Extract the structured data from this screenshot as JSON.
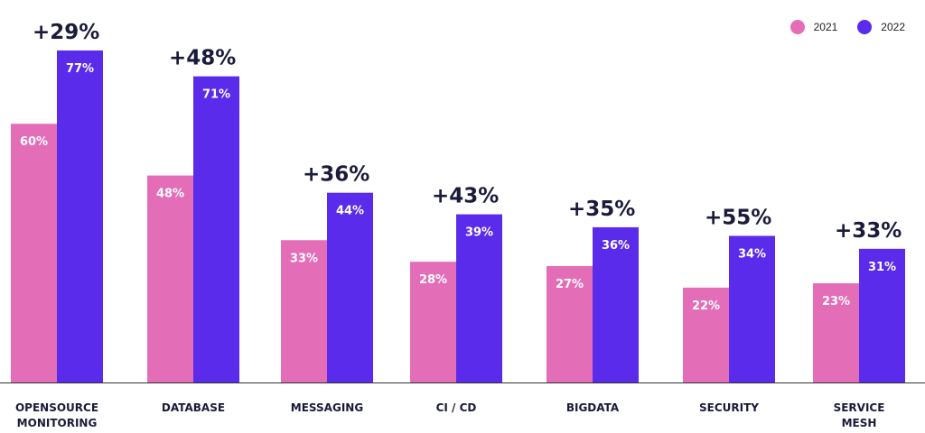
{
  "colors": {
    "s2021": "#e46db8",
    "s2022": "#5a2bea",
    "growth_text": "#1a1a3a",
    "axis": "#333333",
    "label": "#1a1a3a"
  },
  "legend": {
    "label_2021": "2021",
    "label_2022": "2022"
  },
  "chart_data": {
    "type": "bar",
    "categories": [
      "OPENSOURCE MONITORING",
      "DATABASE",
      "MESSAGING",
      "CI / CD",
      "BIGDATA",
      "SECURITY",
      "SERVICE MESH"
    ],
    "category_lines": [
      [
        "OPENSOURCE",
        "MONITORING"
      ],
      [
        "DATABASE"
      ],
      [
        "MESSAGING"
      ],
      [
        "CI / CD"
      ],
      [
        "BIGDATA"
      ],
      [
        "SECURITY"
      ],
      [
        "SERVICE",
        "MESH"
      ]
    ],
    "series": [
      {
        "name": "2021",
        "values": [
          60,
          48,
          33,
          28,
          27,
          22,
          23
        ],
        "labels": [
          "60%",
          "48%",
          "33%",
          "28%",
          "27%",
          "22%",
          "23%"
        ]
      },
      {
        "name": "2022",
        "values": [
          77,
          71,
          44,
          39,
          36,
          34,
          31
        ],
        "labels": [
          "77%",
          "71%",
          "44%",
          "39%",
          "36%",
          "34%",
          "31%"
        ]
      }
    ],
    "growth_labels": [
      "+29%",
      "+48%",
      "+36%",
      "+43%",
      "+35%",
      "+55%",
      "+33%"
    ],
    "ylim": [
      0,
      100
    ],
    "grid": false,
    "legend_position": "top-right",
    "title": "",
    "xlabel": "",
    "ylabel": ""
  }
}
